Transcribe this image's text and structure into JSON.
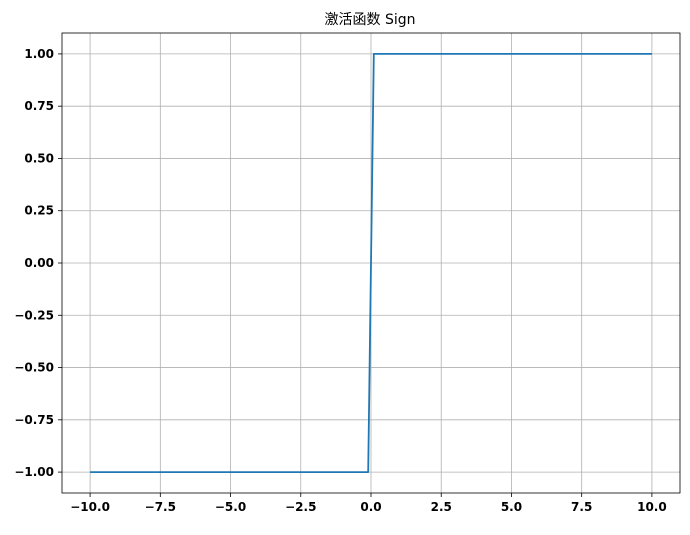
{
  "chart_data": {
    "type": "line",
    "title": "激活函数 Sign",
    "xlabel": "",
    "ylabel": "",
    "xlim": [
      -11.0,
      11.0
    ],
    "ylim": [
      -1.1,
      1.1
    ],
    "xticks": [
      -10.0,
      -7.5,
      -5.0,
      -2.5,
      0.0,
      2.5,
      5.0,
      7.5,
      10.0
    ],
    "xtick_labels": [
      "−10.0",
      "−7.5",
      "−5.0",
      "−2.5",
      "0.0",
      "2.5",
      "5.0",
      "7.5",
      "10.0"
    ],
    "yticks": [
      1.0,
      0.75,
      0.5,
      0.25,
      0.0,
      -0.25,
      -0.5,
      -0.75,
      -1.0
    ],
    "ytick_labels": [
      "1.00",
      "0.75",
      "0.50",
      "0.25",
      "0.00",
      "−0.25",
      "−0.50",
      "−0.75",
      "−1.00"
    ],
    "grid": true,
    "series": [
      {
        "color": "#1f77b4",
        "x": [
          -10.0,
          -0.1,
          0.1,
          10.0
        ],
        "y": [
          -1.0,
          -1.0,
          1.0,
          1.0
        ]
      }
    ]
  }
}
